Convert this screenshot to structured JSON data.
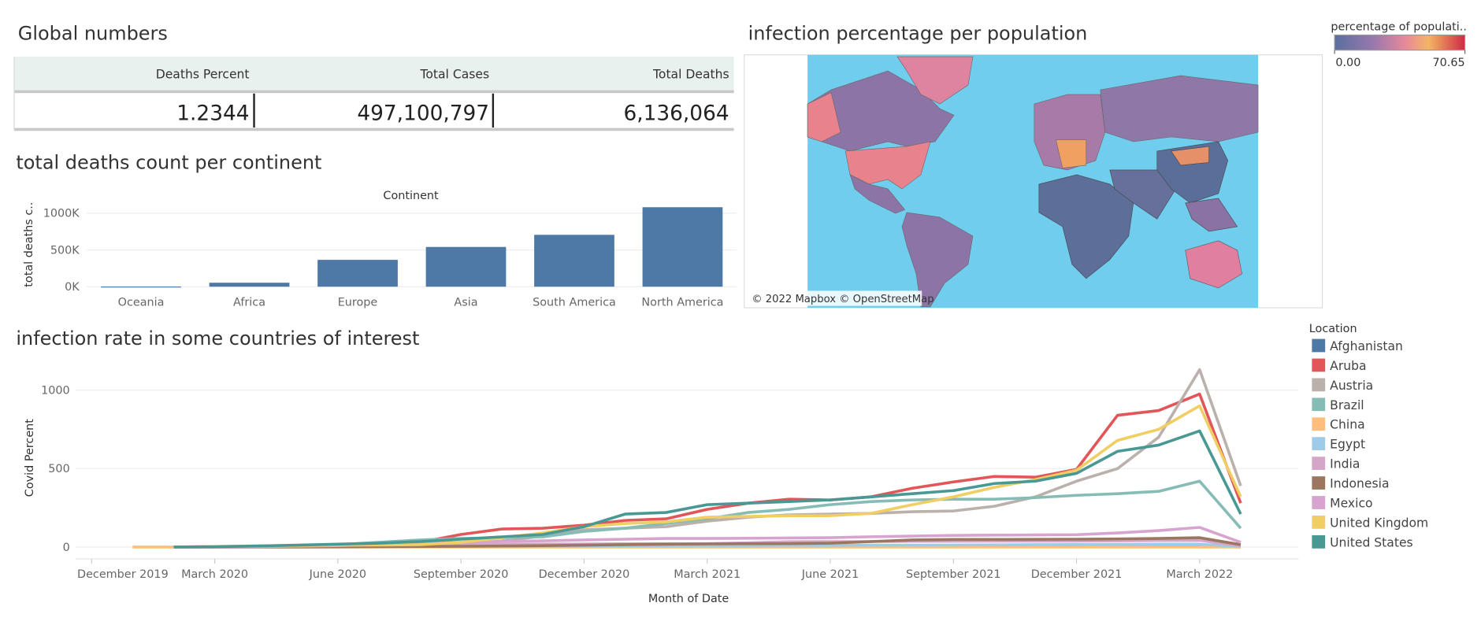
{
  "global_numbers": {
    "title": "Global numbers",
    "headers": [
      "Deaths Percent",
      "Total Cases",
      "Total Deaths"
    ],
    "values": [
      "1.2344",
      "497,100,797",
      "6,136,064"
    ]
  },
  "map": {
    "title": "infection percentage per population",
    "legend_title": "percentage of populati..",
    "legend_min": {
      "value": 0,
      "label": "0.00"
    },
    "legend_max": {
      "value": 70.65,
      "label": "70.65"
    },
    "attribution": "© 2022 Mapbox © OpenStreetMap"
  },
  "chart_data": [
    {
      "type": "bar",
      "title": "total deaths count per continent",
      "header": "Continent",
      "y_label": "total deaths c..",
      "categories": [
        "Oceania",
        "Africa",
        "Europe",
        "Asia",
        "South America",
        "North America"
      ],
      "values": [
        2000,
        54000,
        365000,
        540000,
        705000,
        1080000
      ],
      "color": "#4e79a7",
      "ylim": [
        -30000,
        1150000
      ],
      "yticks": [
        {
          "value": 0,
          "label": "0K"
        },
        {
          "value": 500000,
          "label": "500K"
        },
        {
          "value": 1000000,
          "label": "1000K"
        }
      ],
      "grid": true
    },
    {
      "type": "line",
      "title": "infection rate in some countries of interest",
      "x_label": "Month of Date",
      "y_label": "Covid Percent",
      "legend_title": "Location",
      "legend": "right",
      "grid": true,
      "x": [
        "2020-01",
        "2020-02",
        "2020-03",
        "2020-04",
        "2020-05",
        "2020-06",
        "2020-07",
        "2020-08",
        "2020-09",
        "2020-10",
        "2020-11",
        "2020-12",
        "2021-01",
        "2021-02",
        "2021-03",
        "2021-04",
        "2021-05",
        "2021-06",
        "2021-07",
        "2021-08",
        "2021-09",
        "2021-10",
        "2021-11",
        "2021-12",
        "2022-01",
        "2022-02",
        "2022-03",
        "2022-04"
      ],
      "xlim": [
        "2019-12",
        "2022-05"
      ],
      "xticks": [
        {
          "value": "2019-12",
          "label": "December 2019"
        },
        {
          "value": "2020-03",
          "label": "March 2020"
        },
        {
          "value": "2020-06",
          "label": "June 2020"
        },
        {
          "value": "2020-09",
          "label": "September 2020"
        },
        {
          "value": "2020-12",
          "label": "December 2020"
        },
        {
          "value": "2021-03",
          "label": "March 2021"
        },
        {
          "value": "2021-06",
          "label": "June 2021"
        },
        {
          "value": "2021-09",
          "label": "September 2021"
        },
        {
          "value": "2021-12",
          "label": "December 2021"
        },
        {
          "value": "2022-03",
          "label": "March 2022"
        }
      ],
      "ylim": [
        -75,
        1200
      ],
      "yticks": [
        0,
        500,
        1000
      ],
      "series": [
        {
          "name": "Afghanistan",
          "color": "#4e79a7",
          "values": [
            null,
            0,
            0,
            1,
            1,
            1,
            1,
            2,
            2,
            2,
            2,
            2,
            2,
            2,
            2,
            2,
            2,
            3,
            3,
            3,
            3,
            3,
            3,
            3,
            3,
            3,
            4,
            1
          ]
        },
        {
          "name": "Aruba",
          "color": "#e15759",
          "values": [
            null,
            0,
            2,
            3,
            5,
            6,
            10,
            30,
            80,
            115,
            120,
            140,
            170,
            180,
            240,
            280,
            305,
            300,
            320,
            375,
            415,
            450,
            445,
            495,
            840,
            870,
            975,
            280
          ]
        },
        {
          "name": "Austria",
          "color": "#bab0ac",
          "values": [
            null,
            0,
            3,
            5,
            6,
            7,
            8,
            10,
            20,
            40,
            70,
            110,
            120,
            130,
            165,
            190,
            205,
            210,
            215,
            225,
            230,
            260,
            320,
            420,
            500,
            700,
            1130,
            390
          ]
        },
        {
          "name": "Brazil",
          "color": "#86bcb6",
          "values": [
            null,
            0,
            1,
            3,
            8,
            15,
            30,
            45,
            55,
            60,
            65,
            100,
            120,
            150,
            180,
            220,
            240,
            270,
            290,
            300,
            305,
            305,
            315,
            330,
            340,
            355,
            420,
            120
          ]
        },
        {
          "name": "China",
          "color": "#ffbe7d",
          "values": [
            0,
            0,
            0,
            0,
            0,
            0,
            0,
            0,
            0,
            0,
            0,
            0,
            0,
            0,
            0,
            0,
            0,
            0,
            0,
            0,
            0,
            0,
            0,
            0,
            0,
            0,
            0,
            0
          ]
        },
        {
          "name": "Egypt",
          "color": "#a0cbe8",
          "values": [
            null,
            0,
            0,
            1,
            2,
            3,
            5,
            5,
            5,
            5,
            6,
            7,
            8,
            9,
            9,
            10,
            11,
            11,
            12,
            12,
            13,
            14,
            15,
            16,
            17,
            18,
            18,
            3
          ]
        },
        {
          "name": "India",
          "color": "#d4a6c8",
          "values": [
            null,
            0,
            0,
            1,
            2,
            3,
            6,
            10,
            14,
            17,
            19,
            20,
            21,
            21,
            22,
            27,
            34,
            35,
            35,
            36,
            37,
            38,
            38,
            38,
            40,
            42,
            43,
            8
          ]
        },
        {
          "name": "Indonesia",
          "color": "#9d7660",
          "values": [
            null,
            0,
            0,
            1,
            1,
            2,
            3,
            4,
            5,
            7,
            9,
            12,
            15,
            18,
            20,
            21,
            22,
            25,
            35,
            45,
            48,
            48,
            49,
            50,
            52,
            55,
            60,
            15
          ]
        },
        {
          "name": "Mexico",
          "color": "#d7a3cf",
          "values": [
            null,
            0,
            0,
            2,
            5,
            10,
            18,
            25,
            30,
            35,
            40,
            45,
            50,
            55,
            55,
            56,
            58,
            60,
            66,
            70,
            74,
            76,
            77,
            79,
            90,
            105,
            125,
            30
          ]
        },
        {
          "name": "United Kingdom",
          "color": "#f1ce63",
          "values": [
            null,
            0,
            3,
            8,
            10,
            12,
            13,
            15,
            30,
            60,
            90,
            130,
            150,
            160,
            190,
            195,
            200,
            200,
            215,
            270,
            320,
            380,
            430,
            490,
            680,
            750,
            900,
            320
          ]
        },
        {
          "name": "United States",
          "color": "#499894",
          "values": [
            null,
            0,
            2,
            7,
            12,
            18,
            25,
            35,
            50,
            65,
            80,
            130,
            210,
            220,
            270,
            280,
            290,
            300,
            320,
            340,
            360,
            405,
            420,
            470,
            610,
            650,
            740,
            210
          ]
        }
      ]
    }
  ]
}
